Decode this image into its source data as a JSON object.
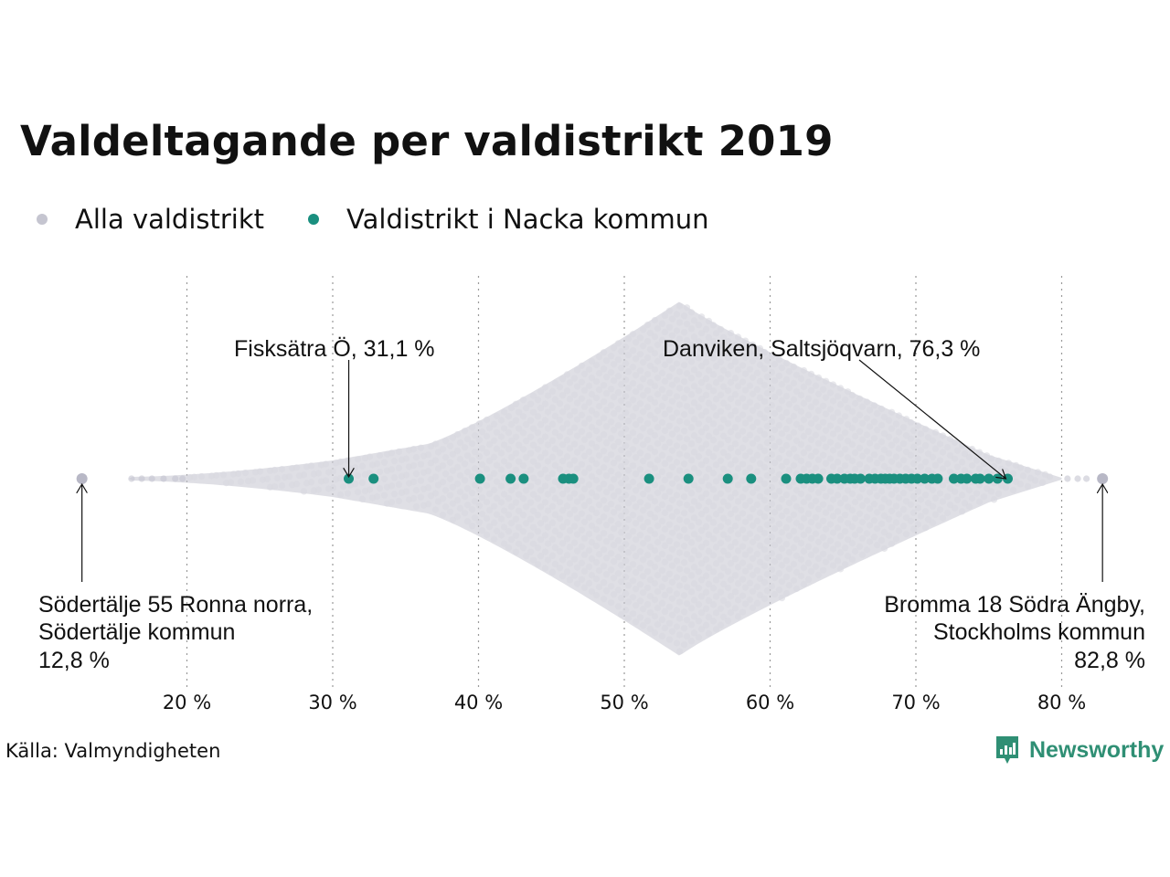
{
  "chart_data": {
    "type": "scatter",
    "title": "Valdeltagande per valdistrikt 2019",
    "xlim": [
      12,
      83
    ],
    "x_ticks": [
      20,
      30,
      40,
      50,
      60,
      70,
      80
    ],
    "x_tick_labels": [
      "20 %",
      "30 %",
      "40 %",
      "50 %",
      "60 %",
      "70 %",
      "80 %"
    ],
    "grid": "vertical dotted",
    "legend_position": "top-left",
    "series": [
      {
        "name": "Alla valdistrikt",
        "color": "#c5c5d0",
        "note_values": [
          12.8,
          82.8
        ],
        "min": 12.8,
        "max": 82.8,
        "peak": 53.8
      },
      {
        "name": "Valdistrikt i Nacka kommun",
        "color": "#1a8f7f",
        "values": [
          31.1,
          32.8,
          40.1,
          42.2,
          43.1,
          45.8,
          46.2,
          46.5,
          51.7,
          54.4,
          57.1,
          58.7,
          61.1,
          62.1,
          62.5,
          62.9,
          63.3,
          64.2,
          64.6,
          65.1,
          65.5,
          65.8,
          66.2,
          66.8,
          67.2,
          67.6,
          67.9,
          68.2,
          68.5,
          68.9,
          69.3,
          69.7,
          70.1,
          70.6,
          71.1,
          71.5,
          72.6,
          73.1,
          73.5,
          74.1,
          74.4,
          75.0,
          75.6,
          76.3
        ]
      }
    ],
    "annotations": [
      {
        "lines": [
          "Fisksätra Ö, 31,1 %"
        ],
        "value": 31.1
      },
      {
        "lines": [
          "Danviken, Saltsjöqvarn, 76,3 %"
        ],
        "value": 76.3
      },
      {
        "lines": [
          "Södertälje 55 Ronna norra,",
          "Södertälje kommun",
          "12,8 %"
        ],
        "value": 12.8
      },
      {
        "lines": [
          "Bromma 18 Södra Ängby,",
          "Stockholms kommun",
          "82,8 %"
        ],
        "value": 82.8
      }
    ]
  },
  "source": "Källa: Valmyndigheten",
  "brand": {
    "name": "Newsworthy",
    "icon": "bar-chart-speech-bubble-icon",
    "color": "#2f8f74"
  }
}
